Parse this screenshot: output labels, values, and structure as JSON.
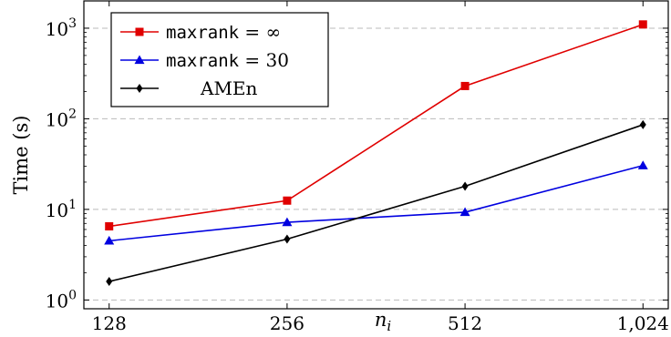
{
  "chart_data": {
    "type": "line",
    "title": "",
    "xlabel": "n_i",
    "ylabel": "Time (s)",
    "x_scale": "log2",
    "y_scale": "log10",
    "xlim": [
      116,
      1130
    ],
    "ylim": [
      0.8,
      2000
    ],
    "x": [
      128,
      256,
      512,
      1024
    ],
    "x_tick_labels": [
      "128",
      "256",
      "512",
      "1,024"
    ],
    "y_ticks": [
      1,
      10,
      100,
      1000
    ],
    "y_tick_labels": [
      {
        "base": "10",
        "exp": "0"
      },
      {
        "base": "10",
        "exp": "1"
      },
      {
        "base": "10",
        "exp": "2"
      },
      {
        "base": "10",
        "exp": "3"
      }
    ],
    "grid": "horizontal-dashed",
    "legend_position": "top-left",
    "series": [
      {
        "name_code": "maxrank",
        "name_suffix": " = ∞",
        "color": "#e00000",
        "marker": "square",
        "values": [
          6.5,
          12.5,
          230,
          1100
        ]
      },
      {
        "name_code": "maxrank",
        "name_suffix": " = 30",
        "color": "#0000e0",
        "marker": "triangle",
        "values": [
          4.5,
          7.2,
          9.3,
          30.5
        ]
      },
      {
        "name_code": "",
        "name_suffix": "AMEn",
        "color": "#000000",
        "marker": "diamond",
        "values": [
          1.6,
          4.7,
          18,
          86
        ]
      }
    ]
  }
}
